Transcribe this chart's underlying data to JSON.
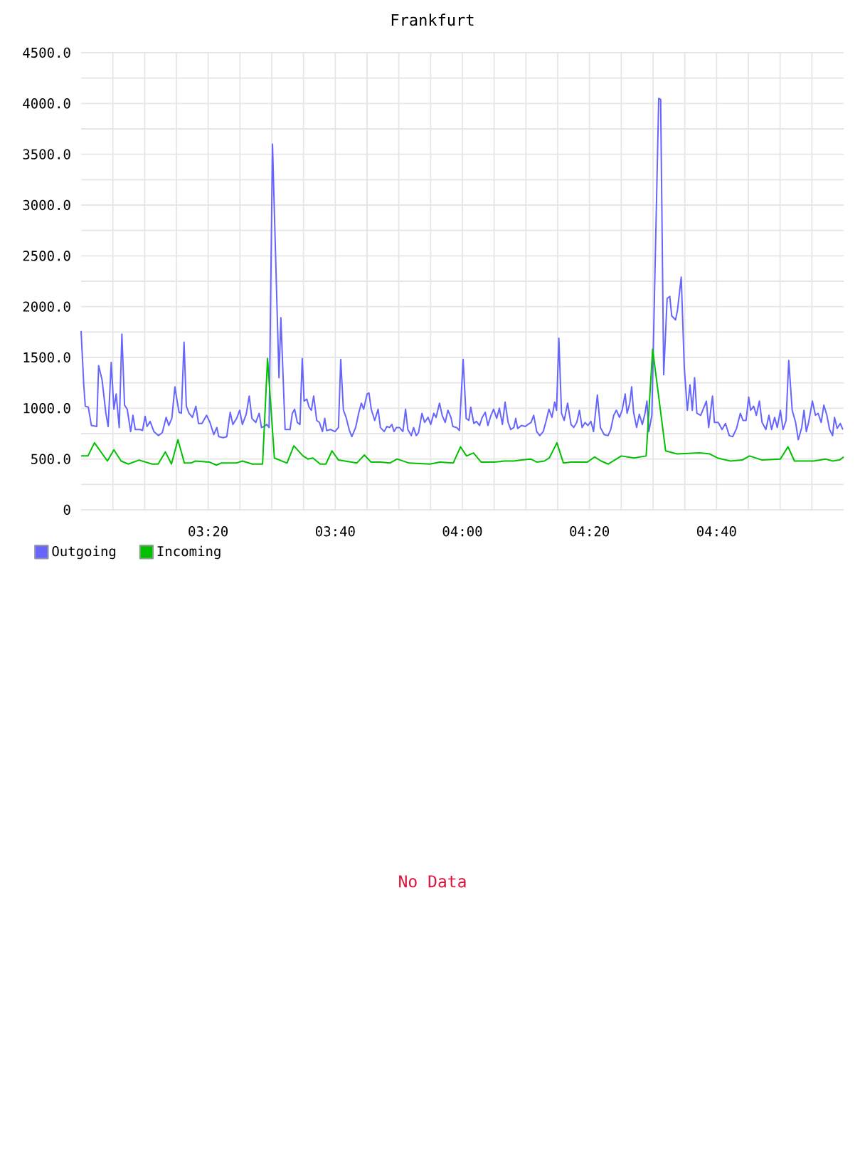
{
  "chart_data": [
    {
      "type": "line",
      "title": "Frankfurt",
      "series": [
        {
          "name": "Outgoing",
          "color": "#6666ff",
          "x": [
            3.0,
            3.007,
            3.011,
            3.019,
            3.027,
            3.041,
            3.046,
            3.055,
            3.065,
            3.071,
            3.079,
            3.086,
            3.092,
            3.1,
            3.107,
            3.114,
            3.121,
            3.13,
            3.136,
            3.142,
            3.155,
            3.161,
            3.168,
            3.173,
            3.181,
            3.191,
            3.203,
            3.213,
            3.223,
            3.23,
            3.238,
            3.246,
            3.251,
            3.257,
            3.263,
            3.27,
            3.276,
            3.283,
            3.292,
            3.301,
            3.308,
            3.317,
            3.329,
            3.338,
            3.348,
            3.356,
            3.361,
            3.373,
            3.382,
            3.391,
            3.398,
            3.408,
            3.416,
            3.423,
            3.433,
            3.441,
            3.448,
            3.458,
            3.467,
            3.473,
            3.48,
            3.487,
            3.493,
            3.502,
            3.519,
            3.524,
            3.535,
            3.548,
            3.554,
            3.56,
            3.567,
            3.574,
            3.58,
            3.585,
            3.592,
            3.598,
            3.604,
            3.61,
            3.618,
            3.625,
            3.633,
            3.639,
            3.644,
            3.654,
            3.666,
            3.675,
            3.681,
            3.688,
            3.695,
            3.703,
            3.71,
            3.72,
            3.728,
            3.735,
            3.741,
            3.75,
            3.755,
            3.761,
            3.77,
            3.779,
            3.785,
            3.795,
            3.802,
            3.809,
            3.815,
            3.821,
            3.827,
            3.835,
            3.844,
            3.851,
            3.857,
            3.866,
            3.872,
            3.879,
            3.885,
            3.894,
            3.901,
            3.91,
            3.917,
            3.925,
            3.931,
            3.94,
            3.947,
            3.955,
            3.962,
            3.97,
            3.975,
            3.985,
            3.992,
            4.002,
            4.01,
            4.017,
            4.022,
            4.03,
            4.037,
            4.045,
            4.052,
            4.06,
            4.067,
            4.075,
            4.082,
            4.09,
            4.097,
            4.105,
            4.112,
            4.12,
            4.127,
            4.135,
            4.14,
            4.145,
            4.155,
            4.165,
            4.172,
            4.18,
            4.187,
            4.195,
            4.203,
            4.212,
            4.22,
            4.227,
            4.235,
            4.242,
            4.247,
            4.253,
            4.26,
            4.267,
            4.276,
            4.285,
            4.292,
            4.3,
            4.307,
            4.314,
            4.322,
            4.329,
            4.337,
            4.344,
            4.354,
            4.362,
            4.372,
            4.382,
            4.389,
            4.397,
            4.404,
            4.412,
            4.419,
            4.427,
            4.432,
            4.439,
            4.444,
            4.449,
            4.457,
            4.464,
            4.472,
            4.479,
            4.484,
            4.489,
            4.497,
            4.515,
            4.52,
            4.528,
            4.537,
            4.544,
            4.549,
            4.559,
            4.564,
            4.574,
            4.582,
            4.59,
            4.597,
            4.603,
            4.609,
            4.615,
            4.625,
            4.64,
            4.646,
            4.656,
            4.661,
            4.671,
            4.681,
            4.69,
            4.7,
            4.709,
            4.719,
            4.729,
            4.736,
            4.744,
            4.751,
            4.756,
            4.764,
            4.771,
            4.779,
            4.786,
            4.796,
            4.804,
            4.811,
            4.819,
            4.826,
            4.834,
            4.841,
            4.849,
            4.856,
            4.865,
            4.874,
            4.881,
            4.89,
            4.896,
            4.902,
            4.908,
            4.918,
            4.926,
            4.933,
            4.941,
            4.948,
            4.956,
            4.963,
            4.971,
            4.976,
            4.983,
            4.991,
            4.998
          ],
          "values": [
            1760,
            1230,
            1020,
            1010,
            830,
            820,
            1420,
            1280,
            950,
            820,
            1450,
            990,
            1140,
            810,
            1730,
            1030,
            990,
            770,
            930,
            790,
            790,
            780,
            920,
            820,
            870,
            770,
            730,
            760,
            910,
            830,
            900,
            1210,
            1090,
            960,
            950,
            1650,
            1020,
            950,
            910,
            1020,
            850,
            850,
            930,
            860,
            740,
            810,
            720,
            710,
            720,
            960,
            840,
            900,
            980,
            840,
            940,
            1120,
            900,
            860,
            950,
            810,
            820,
            840,
            810,
            3600,
            1300,
            1890,
            790,
            790,
            950,
            990,
            860,
            840,
            1490,
            1070,
            1090,
            1010,
            980,
            1120,
            880,
            860,
            770,
            900,
            780,
            790,
            770,
            810,
            1480,
            980,
            910,
            790,
            720,
            810,
            950,
            1050,
            990,
            1140,
            1150,
            990,
            880,
            990,
            810,
            770,
            820,
            810,
            840,
            770,
            810,
            810,
            770,
            990,
            790,
            730,
            810,
            730,
            760,
            950,
            860,
            910,
            840,
            950,
            910,
            1050,
            930,
            860,
            980,
            910,
            820,
            810,
            780,
            1480,
            900,
            880,
            1010,
            850,
            870,
            830,
            910,
            960,
            830,
            930,
            990,
            900,
            1000,
            840,
            1060,
            860,
            790,
            810,
            900,
            800,
            830,
            820,
            840,
            860,
            930,
            770,
            730,
            770,
            880,
            990,
            910,
            1060,
            980,
            1690,
            950,
            880,
            1050,
            840,
            810,
            860,
            980,
            810,
            860,
            830,
            870,
            770,
            1130,
            810,
            740,
            730,
            790,
            930,
            980,
            910,
            980,
            1140,
            950,
            1050,
            1210,
            960,
            810,
            940,
            840,
            950,
            1070,
            770,
            930,
            4050,
            4040,
            1330,
            2080,
            2100,
            1910,
            1870,
            1960,
            2290,
            1400,
            980,
            1230,
            980,
            1300,
            950,
            930,
            1070,
            810,
            1120,
            860,
            860,
            790,
            850,
            730,
            720,
            800,
            950,
            880,
            880,
            1110,
            980,
            1020,
            930,
            1070,
            860,
            790,
            930,
            790,
            910,
            810,
            980,
            790,
            880,
            1470,
            980,
            860,
            690,
            810,
            980,
            770,
            860,
            1070,
            930,
            950,
            860,
            1030,
            930,
            790,
            730,
            910,
            800,
            850,
            790
          ]
        },
        {
          "name": "Incoming",
          "color": "#00c000",
          "x": [
            3.0,
            3.018,
            3.035,
            3.069,
            3.086,
            3.105,
            3.124,
            3.152,
            3.186,
            3.202,
            3.221,
            3.237,
            3.254,
            3.271,
            3.288,
            3.3,
            3.336,
            3.355,
            3.367,
            3.407,
            3.423,
            3.449,
            3.476,
            3.489,
            3.507,
            3.54,
            3.558,
            3.582,
            3.595,
            3.608,
            3.627,
            3.642,
            3.658,
            3.675,
            3.723,
            3.743,
            3.76,
            3.785,
            3.81,
            3.829,
            3.86,
            3.915,
            3.941,
            3.976,
            3.995,
            4.011,
            4.029,
            4.049,
            4.085,
            4.11,
            4.135,
            4.155,
            4.179,
            4.195,
            4.215,
            4.228,
            4.248,
            4.265,
            4.285,
            4.328,
            4.347,
            4.364,
            4.382,
            4.417,
            4.45,
            4.482,
            4.499,
            4.533,
            4.563,
            4.622,
            4.649,
            4.669,
            4.703,
            4.734,
            4.753,
            4.786,
            4.834,
            4.854,
            4.871,
            4.921,
            4.952,
            4.971,
            4.989,
            5.0
          ],
          "values": [
            530,
            530,
            660,
            480,
            590,
            480,
            450,
            490,
            450,
            450,
            570,
            450,
            690,
            460,
            460,
            480,
            470,
            440,
            460,
            460,
            480,
            450,
            450,
            1490,
            510,
            460,
            630,
            530,
            500,
            510,
            450,
            450,
            580,
            490,
            460,
            540,
            470,
            470,
            460,
            500,
            460,
            450,
            470,
            460,
            620,
            530,
            560,
            470,
            470,
            480,
            480,
            490,
            500,
            470,
            480,
            510,
            660,
            460,
            470,
            470,
            520,
            480,
            450,
            530,
            510,
            530,
            1580,
            580,
            550,
            560,
            550,
            510,
            480,
            490,
            530,
            490,
            500,
            620,
            480,
            480,
            500,
            480,
            490,
            520
          ]
        }
      ],
      "xlim": [
        3,
        5
      ],
      "xticks": [
        {
          "value": 3.0833,
          "label": null
        },
        {
          "value": 3.1667,
          "label": null
        },
        {
          "value": 3.25,
          "label": null
        },
        {
          "value": 3.3333,
          "label": "03:20"
        },
        {
          "value": 3.4167,
          "label": null
        },
        {
          "value": 3.5,
          "label": null
        },
        {
          "value": 3.5833,
          "label": null
        },
        {
          "value": 3.6667,
          "label": "03:40"
        },
        {
          "value": 3.75,
          "label": null
        },
        {
          "value": 3.8333,
          "label": null
        },
        {
          "value": 3.9167,
          "label": null
        },
        {
          "value": 4,
          "label": "04:00"
        },
        {
          "value": 4.0833,
          "label": null
        },
        {
          "value": 4.1667,
          "label": null
        },
        {
          "value": 4.25,
          "label": null
        },
        {
          "value": 4.3333,
          "label": "04:20"
        },
        {
          "value": 4.4167,
          "label": null
        },
        {
          "value": 4.5,
          "label": null
        },
        {
          "value": 4.5833,
          "label": null
        },
        {
          "value": 4.6667,
          "label": "04:40"
        },
        {
          "value": 4.75,
          "label": null
        },
        {
          "value": 4.8333,
          "label": null
        },
        {
          "value": 4.9167,
          "label": null
        }
      ],
      "ylim": [
        0,
        4500
      ],
      "yticks": [
        0,
        {
          "value": 250,
          "label": null
        },
        {
          "value": 500,
          "label": "500.0"
        },
        {
          "value": 750,
          "label": null
        },
        {
          "value": 1000,
          "label": "1000.0"
        },
        {
          "value": 1250,
          "label": null
        },
        {
          "value": 1500,
          "label": "1500.0"
        },
        {
          "value": 1750,
          "label": null
        },
        {
          "value": 2000,
          "label": "2000.0"
        },
        {
          "value": 2250,
          "label": null
        },
        {
          "value": 2500,
          "label": "2500.0"
        },
        {
          "value": 2750,
          "label": null
        },
        {
          "value": 3000,
          "label": "3000.0"
        },
        {
          "value": 3250,
          "label": null
        },
        {
          "value": 3500,
          "label": "3500.0"
        },
        {
          "value": 3750,
          "label": null
        },
        {
          "value": 4000,
          "label": "4000.0"
        },
        {
          "value": 4250,
          "label": null
        },
        {
          "value": 4500,
          "label": "4500.0"
        }
      ],
      "grid": true,
      "legend": "bottom left"
    },
    {
      "type": "other",
      "annotations": [
        "No Data"
      ],
      "color": "#dc143c"
    }
  ]
}
